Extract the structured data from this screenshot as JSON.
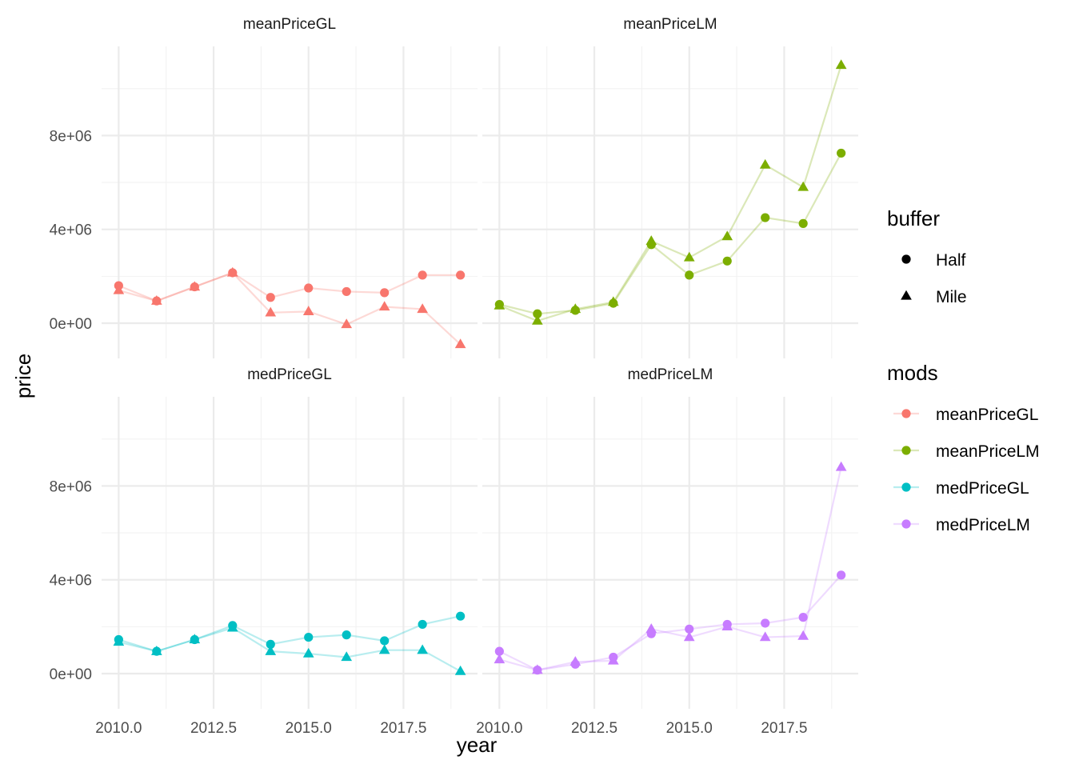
{
  "chart_data": {
    "type": "line",
    "x_label": "year",
    "y_label": "price",
    "x_ticks": [
      2010.0,
      2012.5,
      2015.0,
      2017.5
    ],
    "x_tick_labels": [
      "2010.0",
      "2012.5",
      "2015.0",
      "2017.5"
    ],
    "y_ticks": [
      0,
      4000000,
      8000000
    ],
    "y_tick_labels": [
      "0e+00",
      "4e+06",
      "8e+06"
    ],
    "xlim": [
      2009.55,
      2019.45
    ],
    "ylim": [
      -1500000,
      11800000
    ],
    "grid": true,
    "legend_placement": "right",
    "x": [
      2010,
      2011,
      2012,
      2013,
      2014,
      2015,
      2016,
      2017,
      2018,
      2019
    ],
    "panels": [
      {
        "title": "meanPriceGL",
        "mod": "meanPriceGL",
        "series": [
          {
            "buffer": "Half",
            "values": [
              1600000,
              950000,
              1550000,
              2150000,
              1100000,
              1500000,
              1350000,
              1300000,
              2050000,
              2050000
            ]
          },
          {
            "buffer": "Mile",
            "values": [
              1400000,
              950000,
              1550000,
              2150000,
              450000,
              500000,
              -50000,
              700000,
              600000,
              -900000
            ]
          }
        ]
      },
      {
        "title": "meanPriceLM",
        "mod": "meanPriceLM",
        "series": [
          {
            "buffer": "Half",
            "values": [
              800000,
              400000,
              550000,
              850000,
              3350000,
              2050000,
              2650000,
              4500000,
              4250000,
              7250000
            ]
          },
          {
            "buffer": "Mile",
            "values": [
              750000,
              100000,
              600000,
              900000,
              3500000,
              2800000,
              3700000,
              6750000,
              5800000,
              11000000
            ]
          }
        ]
      },
      {
        "title": "medPriceGL",
        "mod": "medPriceGL",
        "series": [
          {
            "buffer": "Half",
            "values": [
              1450000,
              950000,
              1450000,
              2050000,
              1250000,
              1550000,
              1650000,
              1400000,
              2100000,
              2450000
            ]
          },
          {
            "buffer": "Mile",
            "values": [
              1350000,
              950000,
              1450000,
              1950000,
              950000,
              850000,
              700000,
              1000000,
              1000000,
              100000
            ]
          }
        ]
      },
      {
        "title": "medPriceLM",
        "mod": "medPriceLM",
        "series": [
          {
            "buffer": "Half",
            "values": [
              950000,
              150000,
              400000,
              700000,
              1700000,
              1900000,
              2100000,
              2150000,
              2400000,
              4200000
            ]
          },
          {
            "buffer": "Mile",
            "values": [
              600000,
              150000,
              500000,
              550000,
              1900000,
              1550000,
              2000000,
              1550000,
              1600000,
              8800000
            ]
          }
        ]
      }
    ],
    "legends": {
      "buffer": {
        "title": "buffer",
        "entries": [
          {
            "label": "Half",
            "shape": "circle"
          },
          {
            "label": "Mile",
            "shape": "triangle"
          }
        ]
      },
      "mods": {
        "title": "mods",
        "entries": [
          {
            "label": "meanPriceGL",
            "color": "#F8766D"
          },
          {
            "label": "meanPriceLM",
            "color": "#7CAE00"
          },
          {
            "label": "medPriceGL",
            "color": "#00BFC4"
          },
          {
            "label": "medPriceLM",
            "color": "#C77CFF"
          }
        ]
      }
    }
  }
}
